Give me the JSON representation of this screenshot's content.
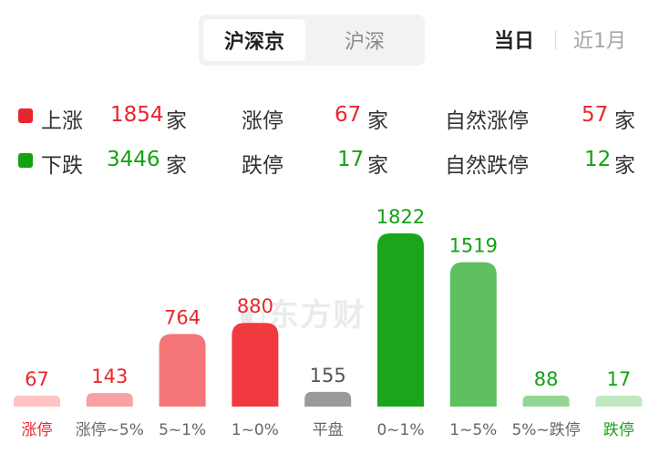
{
  "market_tabs": {
    "items": [
      "沪深京",
      "沪深"
    ],
    "selected": "沪深京"
  },
  "time_range": {
    "items": [
      "当日",
      "近1月"
    ],
    "selected": "当日"
  },
  "stats": {
    "up": {
      "label": "上涨",
      "value": "1854",
      "unit": "家"
    },
    "limit_up": {
      "label": "涨停",
      "value": "67",
      "unit": "家"
    },
    "natural_limit_up": {
      "label": "自然涨停",
      "value": "57",
      "unit": "家"
    },
    "down": {
      "label": "下跌",
      "value": "3446",
      "unit": "家"
    },
    "limit_down": {
      "label": "跌停",
      "value": "17",
      "unit": "家"
    },
    "natural_limit_down": {
      "label": "自然跌停",
      "value": "12",
      "unit": "家"
    }
  },
  "watermark": "东方财",
  "colors": {
    "up": "#e8262d",
    "down": "#14a114",
    "flat": "#8a8a8a"
  },
  "chart_data": {
    "type": "bar",
    "title": "",
    "xlabel": "",
    "ylabel": "",
    "categories": [
      "涨停",
      "涨停~5%",
      "5~1%",
      "1~0%",
      "平盘",
      "0~1%",
      "1~5%",
      "5%~跌停",
      "跌停"
    ],
    "values": [
      67,
      143,
      764,
      880,
      155,
      1822,
      1519,
      88,
      17
    ],
    "bar_colors": [
      "#ffc3c4",
      "#f9a0a2",
      "#f47678",
      "#f03a40",
      "#9a9a9a",
      "#1aa61a",
      "#5ec05e",
      "#93d693",
      "#c0e8c0"
    ],
    "label_colors": [
      "#e8262d",
      "#e8262d",
      "#e8262d",
      "#e8262d",
      "#555555",
      "#14a114",
      "#14a114",
      "#14a114",
      "#14a114"
    ],
    "category_colors": [
      "#e8262d",
      "#666666",
      "#666666",
      "#666666",
      "#666666",
      "#666666",
      "#666666",
      "#666666",
      "#14a114"
    ],
    "ylim": [
      0,
      1822
    ],
    "grid": false,
    "legend": "none"
  }
}
